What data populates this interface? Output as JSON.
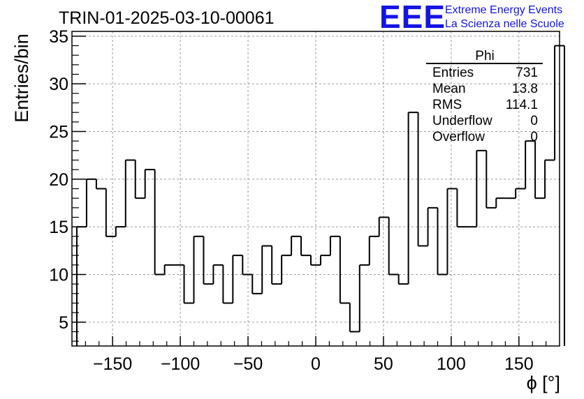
{
  "header": {
    "run_title": "TRIN-01-2025-03-10-00061",
    "logo_text": "EEE",
    "logo_line1": "Extreme Energy Events",
    "logo_line2": "La Scienza nelle Scuole",
    "logo_color": "#1414e6"
  },
  "stats_box": {
    "title": "Phi",
    "rows": [
      {
        "label": "Entries",
        "value": "731"
      },
      {
        "label": "Mean",
        "value": "13.8"
      },
      {
        "label": "RMS",
        "value": "114.1"
      },
      {
        "label": "Underflow",
        "value": "0"
      },
      {
        "label": "Overflow",
        "value": "0"
      }
    ]
  },
  "chart_data": {
    "type": "histogram",
    "title": "TRIN-01-2025-03-10-00061",
    "xlabel": "ϕ [°]",
    "ylabel": "Entries/bin",
    "xlim": [
      -180,
      180
    ],
    "ylim": [
      2.5,
      35.5
    ],
    "bin_width": 7.2,
    "x_ticks": [
      -150,
      -100,
      -50,
      0,
      50,
      100,
      150
    ],
    "x_tick_labels": [
      "−150",
      "−100",
      "−50",
      "0",
      "50",
      "100",
      "150"
    ],
    "y_ticks": [
      5,
      10,
      15,
      20,
      25,
      30,
      35
    ],
    "y_tick_labels": [
      "5",
      "10",
      "15",
      "20",
      "25",
      "30",
      "35"
    ],
    "grid": true,
    "bin_edges_start": -176.4,
    "values": [
      15,
      20,
      19,
      14,
      15,
      22,
      18,
      21,
      10,
      11,
      11,
      7,
      14,
      9,
      11,
      7,
      12,
      10,
      8,
      13,
      9,
      12,
      14,
      12,
      11,
      12,
      14,
      7,
      4,
      11,
      14,
      16,
      10,
      9,
      27,
      13,
      17,
      10,
      19,
      15,
      15,
      23,
      17,
      18,
      18,
      19,
      24,
      18,
      22,
      34
    ]
  }
}
